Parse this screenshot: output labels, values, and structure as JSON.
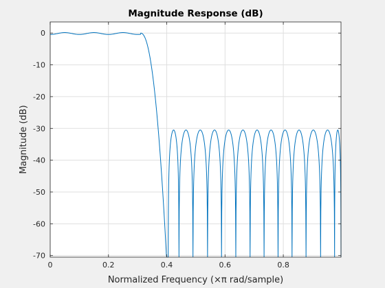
{
  "chart_data": {
    "type": "line",
    "title": "Magnitude Response (dB)",
    "xlabel": "Normalized Frequency (×π rad/sample)",
    "ylabel": "Magnitude (dB)",
    "xlim": [
      0,
      0.998
    ],
    "ylim": [
      -70.5,
      3.5
    ],
    "xticks": [
      0,
      0.2,
      0.4,
      0.6,
      0.8
    ],
    "xtick_labels": [
      "0",
      "0.2",
      "0.4",
      "0.6",
      "0.8"
    ],
    "yticks": [
      0,
      -10,
      -20,
      -30,
      -40,
      -50,
      -60,
      -70
    ],
    "ytick_labels": [
      "0",
      "-10",
      "-20",
      "-30",
      "-40",
      "-50",
      "-60",
      "-70"
    ],
    "grid": true,
    "series": [
      {
        "color": "#0072bd",
        "passband_edge": 0.31,
        "passband_ripple_db": 0.5,
        "stopband_edge": 0.4,
        "stopband_level_db": -30.5,
        "stopband_nulls": [
          0.405,
          0.442,
          0.49,
          0.54,
          0.588,
          0.637,
          0.686,
          0.734,
          0.782,
          0.83,
          0.878,
          0.928,
          0.976,
          0.998
        ]
      }
    ]
  }
}
